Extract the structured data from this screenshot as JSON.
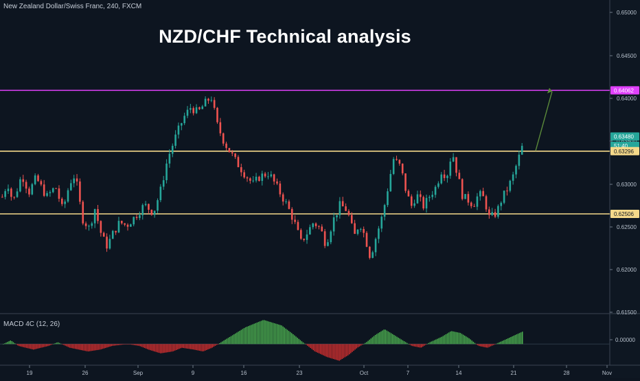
{
  "header": {
    "instrument": "New Zealand Dollar/Swiss Franc, 240, FXCM",
    "title": "NZD/CHF Technical analysis"
  },
  "macd": {
    "label": "MACD 4C (12, 26)"
  },
  "colors": {
    "background": "#0d1520",
    "up": "#26a69a",
    "down": "#ef5350",
    "resistance": "#e040fb",
    "level": "#f5d98a",
    "macd_pos": "#4caf50",
    "macd_neg": "#d32f2f",
    "arrow": "#5b8a3a"
  },
  "chart_data": {
    "type": "candlestick",
    "symbol": "NZD/CHF",
    "timeframe": "240",
    "source": "FXCM",
    "ylim": [
      0.6125,
      0.652
    ],
    "y_ticks": [
      "0.65000",
      "0.64500",
      "0.64000",
      "0.63500",
      "0.63000",
      "0.62500",
      "0.62000",
      "0.61500"
    ],
    "x_ticks": [
      "19",
      "26",
      "Sep",
      "9",
      "16",
      "23",
      "Oct",
      "7",
      "14",
      "21",
      "28",
      "Nov"
    ],
    "price_labels": [
      {
        "text": "0.64062",
        "value": 0.64062,
        "kind": "resistance"
      },
      {
        "text": "0.63480",
        "value": 0.6348,
        "kind": "last"
      },
      {
        "text": "51:40",
        "value": 0.63365,
        "kind": "timer"
      },
      {
        "text": "0.63296",
        "value": 0.63296,
        "kind": "level"
      },
      {
        "text": "0.62506",
        "value": 0.62506,
        "kind": "level"
      }
    ],
    "horizontal_lines": [
      {
        "value": 0.64062,
        "kind": "resistance"
      },
      {
        "value": 0.63296,
        "kind": "level"
      },
      {
        "value": 0.62506,
        "kind": "level"
      }
    ],
    "price_path": [
      [
        0.6272,
        0
      ],
      [
        0.629,
        6
      ],
      [
        0.6265,
        12
      ],
      [
        0.63,
        22
      ],
      [
        0.6278,
        30
      ],
      [
        0.6296,
        38
      ],
      [
        0.6272,
        50
      ],
      [
        0.6285,
        60
      ],
      [
        0.6255,
        68
      ],
      [
        0.629,
        76
      ],
      [
        0.63,
        82
      ],
      [
        0.6245,
        90
      ],
      [
        0.6232,
        98
      ],
      [
        0.6258,
        104
      ],
      [
        0.6222,
        112
      ],
      [
        0.621,
        118
      ],
      [
        0.6225,
        124
      ],
      [
        0.624,
        132
      ],
      [
        0.6236,
        140
      ],
      [
        0.6248,
        150
      ],
      [
        0.6262,
        160
      ],
      [
        0.6252,
        170
      ],
      [
        0.628,
        178
      ],
      [
        0.632,
        186
      ],
      [
        0.6345,
        194
      ],
      [
        0.6372,
        204
      ],
      [
        0.6385,
        212
      ],
      [
        0.6378,
        220
      ],
      [
        0.639,
        228
      ],
      [
        0.6398,
        235
      ],
      [
        0.6362,
        242
      ],
      [
        0.634,
        250
      ],
      [
        0.6318,
        262
      ],
      [
        0.6302,
        272
      ],
      [
        0.6288,
        282
      ],
      [
        0.6298,
        290
      ],
      [
        0.6302,
        300
      ],
      [
        0.6282,
        310
      ],
      [
        0.6262,
        320
      ],
      [
        0.6242,
        328
      ],
      [
        0.6215,
        336
      ],
      [
        0.6225,
        342
      ],
      [
        0.624,
        350
      ],
      [
        0.6232,
        358
      ],
      [
        0.6212,
        364
      ],
      [
        0.6242,
        372
      ],
      [
        0.6262,
        380
      ],
      [
        0.6255,
        388
      ],
      [
        0.6222,
        396
      ],
      [
        0.624,
        402
      ],
      [
        0.6222,
        408
      ],
      [
        0.6196,
        414
      ],
      [
        0.622,
        420
      ],
      [
        0.625,
        428
      ],
      [
        0.6285,
        434
      ],
      [
        0.632,
        440
      ],
      [
        0.631,
        448
      ],
      [
        0.628,
        454
      ],
      [
        0.626,
        460
      ],
      [
        0.6275,
        466
      ],
      [
        0.626,
        474
      ],
      [
        0.6272,
        480
      ],
      [
        0.6285,
        488
      ],
      [
        0.6305,
        494
      ],
      [
        0.6298,
        500
      ],
      [
        0.633,
        506
      ],
      [
        0.63,
        512
      ],
      [
        0.6272,
        518
      ],
      [
        0.6268,
        524
      ],
      [
        0.6262,
        530
      ],
      [
        0.6276,
        536
      ],
      [
        0.627,
        542
      ],
      [
        0.6245,
        548
      ],
      [
        0.6252,
        556
      ],
      [
        0.627,
        562
      ],
      [
        0.6282,
        568
      ],
      [
        0.6296,
        574
      ],
      [
        0.6318,
        580
      ],
      [
        0.6346,
        588
      ]
    ],
    "projection": {
      "from": [
        0.633,
        0
      ],
      "to": [
        0.6405,
        0
      ]
    },
    "macd_ylim": [
      -0.0011,
      0.0016
    ],
    "macd_ticks": [
      "0.00000"
    ],
    "macd_profile": [
      [
        0.0,
        0
      ],
      [
        0.0002,
        5
      ],
      [
        -0.0001,
        10
      ],
      [
        -0.0003,
        20
      ],
      [
        -0.0001,
        30
      ],
      [
        0.0001,
        36
      ],
      [
        -0.0002,
        44
      ],
      [
        -0.0004,
        56
      ],
      [
        -0.0003,
        64
      ],
      [
        -0.0001,
        72
      ],
      [
        0.0,
        82
      ],
      [
        -0.0001,
        90
      ],
      [
        -0.0003,
        96
      ],
      [
        -0.0005,
        104
      ],
      [
        -0.0004,
        112
      ],
      [
        -0.0002,
        118
      ],
      [
        -0.0003,
        126
      ],
      [
        -0.0004,
        132
      ],
      [
        -0.0002,
        138
      ],
      [
        0.0002,
        146
      ],
      [
        0.0004,
        150
      ],
      [
        0.0009,
        160
      ],
      [
        0.0013,
        172
      ],
      [
        0.001,
        184
      ],
      [
        0.0005,
        192
      ],
      [
        0.0001,
        198
      ],
      [
        -0.0004,
        206
      ],
      [
        -0.0007,
        214
      ],
      [
        -0.0009,
        222
      ],
      [
        -0.0006,
        228
      ],
      [
        -0.0002,
        234
      ],
      [
        0.0001,
        240
      ],
      [
        0.0005,
        246
      ],
      [
        0.0008,
        252
      ],
      [
        0.0005,
        258
      ],
      [
        0.0002,
        264
      ],
      [
        -0.0001,
        270
      ],
      [
        -0.0002,
        276
      ],
      [
        0.0001,
        282
      ],
      [
        0.0004,
        290
      ],
      [
        0.0007,
        296
      ],
      [
        0.0006,
        302
      ],
      [
        0.0003,
        308
      ],
      [
        -0.0001,
        314
      ],
      [
        -0.0002,
        320
      ],
      [
        0.0001,
        328
      ],
      [
        0.0004,
        336
      ],
      [
        0.0007,
        344
      ]
    ]
  }
}
